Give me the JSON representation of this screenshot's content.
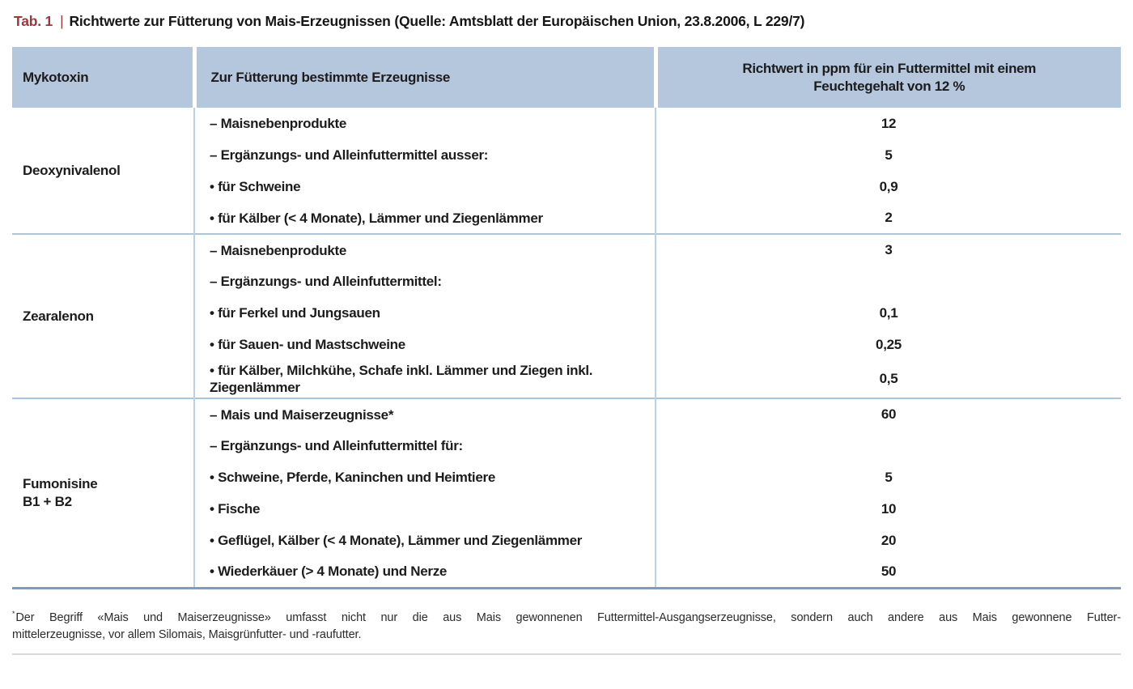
{
  "caption": {
    "tag": "Tab. 1",
    "separator": "|",
    "text": "Richtwerte zur Fütterung von Mais-Erzeugnissen (Quelle: Amtsblatt der Europäischen Union, 23.8.2006, L 229/7)"
  },
  "colors": {
    "accent_red": "#a23539",
    "header_bg": "#b4c7dc",
    "section_line": "#a9c6e0",
    "column_line": "#b9d2e8",
    "bottom_border": "#7e9dbe"
  },
  "table": {
    "headers": [
      "Mykotoxin",
      "Zur Fütterung bestimmte Erzeugnisse",
      "Richtwert in ppm für ein Futtermittel mit einem Feuchtegehalt von 12 %"
    ],
    "sections": [
      {
        "mykotoxin": "Deoxynivalenol",
        "rows": [
          {
            "erzeugnis": "– Maisnebenprodukte",
            "richtwert": "12"
          },
          {
            "erzeugnis": "– Ergänzungs- und Alleinfuttermittel ausser:",
            "richtwert": "5"
          },
          {
            "erzeugnis": "• für Schweine",
            "richtwert": "0,9"
          },
          {
            "erzeugnis": "• für Kälber (< 4 Monate), Lämmer und Ziegenlämmer",
            "richtwert": "2"
          }
        ]
      },
      {
        "mykotoxin": "Zearalenon",
        "rows": [
          {
            "erzeugnis": "– Maisnebenprodukte",
            "richtwert": "3"
          },
          {
            "erzeugnis": "– Ergänzungs- und Alleinfuttermittel:",
            "richtwert": ""
          },
          {
            "erzeugnis": "• für Ferkel und Jungsauen",
            "richtwert": "0,1"
          },
          {
            "erzeugnis": "• für Sauen- und Mastschweine",
            "richtwert": "0,25"
          },
          {
            "erzeugnis": "• für Kälber, Milchkühe, Schafe inkl. Lämmer und Ziegen inkl. Ziegenlämmer",
            "richtwert": "0,5"
          }
        ]
      },
      {
        "mykotoxin": "Fumonisine\nB1 + B2",
        "rows": [
          {
            "erzeugnis": "– Mais und Maiserzeugnisse*",
            "richtwert": "60"
          },
          {
            "erzeugnis": "– Ergänzungs- und Alleinfuttermittel für:",
            "richtwert": ""
          },
          {
            "erzeugnis": "• Schweine, Pferde, Kaninchen und Heimtiere",
            "richtwert": "5"
          },
          {
            "erzeugnis": "• Fische",
            "richtwert": "10"
          },
          {
            "erzeugnis": "• Geflügel, Kälber (< 4 Monate), Lämmer und Ziegenlämmer",
            "richtwert": "20"
          },
          {
            "erzeugnis": "• Wiederkäuer (> 4 Monate) und Nerze",
            "richtwert": "50"
          }
        ]
      }
    ]
  },
  "footnote": {
    "marker": "*",
    "line1": "Der Begriff «Mais und Maiserzeugnisse» umfasst nicht nur die aus Mais gewonnenen Futtermittel-Ausgangserzeugnisse, sondern auch andere aus Mais gewonnene Futter-",
    "line2": "mittelerzeugnisse, vor allem Silomais, Maisgrünfutter- und -raufutter."
  }
}
